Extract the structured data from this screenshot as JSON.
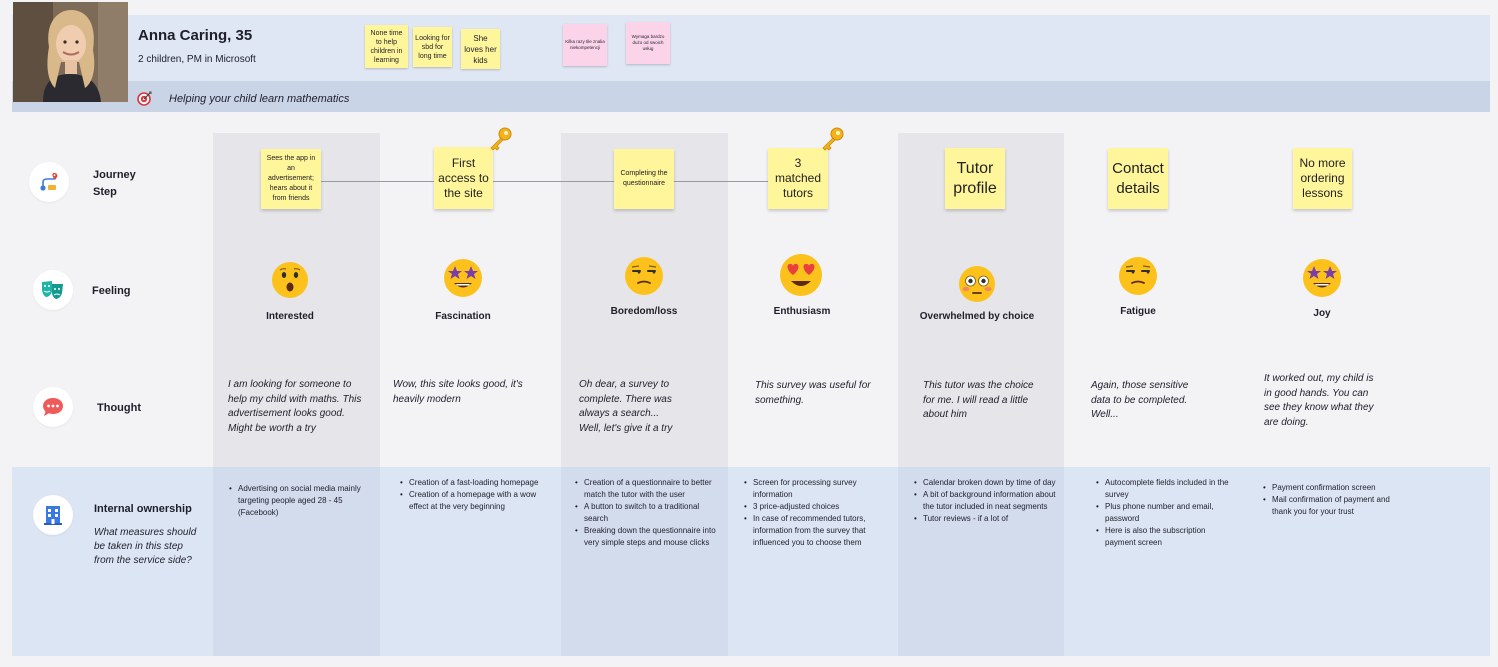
{
  "persona": {
    "name": "Anna Caring, 35",
    "description": "2 children, PM in Microsoft",
    "goal": "Helping your child learn mathematics"
  },
  "persona_notes": [
    {
      "text": "None time to help children in learning",
      "color": "yellow"
    },
    {
      "text": "Looking for sbd for long time",
      "color": "yellow"
    },
    {
      "text": "She loves her kids",
      "color": "yellow"
    },
    {
      "text": "Kilka razy tile znalia niekompetencji",
      "color": "pink"
    },
    {
      "text": "Wymaga bardzo dużo od swoich usług",
      "color": "pink"
    }
  ],
  "rows": {
    "journey": "Journey Step",
    "journey_line1": "Journey",
    "journey_line2": "Step",
    "feeling": "Feeling",
    "thought": "Thought",
    "ownership": "Internal ownership",
    "ownership_sub": "What measures should be taken in this step from the service side?"
  },
  "steps": [
    {
      "text": "Sees the app in an advertisement; hears about it from friends",
      "key": false
    },
    {
      "text": "First access to the site",
      "key": true
    },
    {
      "text": "Completing the questionnaire",
      "key": false
    },
    {
      "text": "3 matched tutors",
      "key": true
    },
    {
      "text": "Tutor profile",
      "key": false
    },
    {
      "text": "Contact details",
      "key": false
    },
    {
      "text": "No more ordering lessons",
      "key": false
    }
  ],
  "feelings": [
    {
      "label": "Interested",
      "emoji": "surprised-face-icon"
    },
    {
      "label": "Fascination",
      "emoji": "star-struck-face-icon"
    },
    {
      "label": "Boredom/loss",
      "emoji": "unamused-face-icon"
    },
    {
      "label": "Enthusiasm",
      "emoji": "heart-eyes-face-icon"
    },
    {
      "label": "Overwhelmed by choice",
      "emoji": "flushed-face-icon"
    },
    {
      "label": "Fatigue",
      "emoji": "unamused-face-icon"
    },
    {
      "label": "Joy",
      "emoji": "star-struck-face-icon"
    }
  ],
  "thoughts": [
    "I am looking for someone to help my child with maths. This advertisement looks good. Might be worth a try",
    "Wow, this site looks good, it's heavily modern",
    "Oh dear, a survey to complete. There was always a search... Well, let's give it a try",
    "This survey was useful for something.",
    "This tutor was the choice for me. I will read a little about him",
    "Again, those sensitive data to be completed. Well...",
    "It worked out, my child is in good hands. You can see they know what they are doing."
  ],
  "ownership": [
    [
      "Advertising on social media mainly targeting people aged 28 - 45 (Facebook)"
    ],
    [
      "Creation of a fast-loading homepage",
      "Creation of a homepage with a wow effect at the very beginning"
    ],
    [
      "Creation of a questionnaire to better match the tutor with the user",
      "A button to switch to a traditional search",
      "Breaking down the questionnaire into very simple steps and mouse clicks"
    ],
    [
      "Screen for processing survey information",
      "3 price-adjusted choices",
      "In case of recommended tutors, information from the survey that influenced you to choose them"
    ],
    [
      "Calendar broken down by time of day",
      "A bit of background information about the tutor included in neat segments",
      "Tutor reviews - if a lot of"
    ],
    [
      "Autocomplete fields included in the survey",
      "Plus phone number and email, password",
      "Here is also the subscription payment screen"
    ],
    [
      "Payment confirmation screen",
      "Mail confirmation of payment and thank you for your trust"
    ]
  ],
  "colors": {
    "note_yellow": "#fff59a",
    "note_pink": "#fbd4ea",
    "persona_band": "#dfe6f4",
    "goal_band": "#c9d4e6",
    "ownership_band": "#dce5f4",
    "column_shade": "#e6e5e9"
  }
}
